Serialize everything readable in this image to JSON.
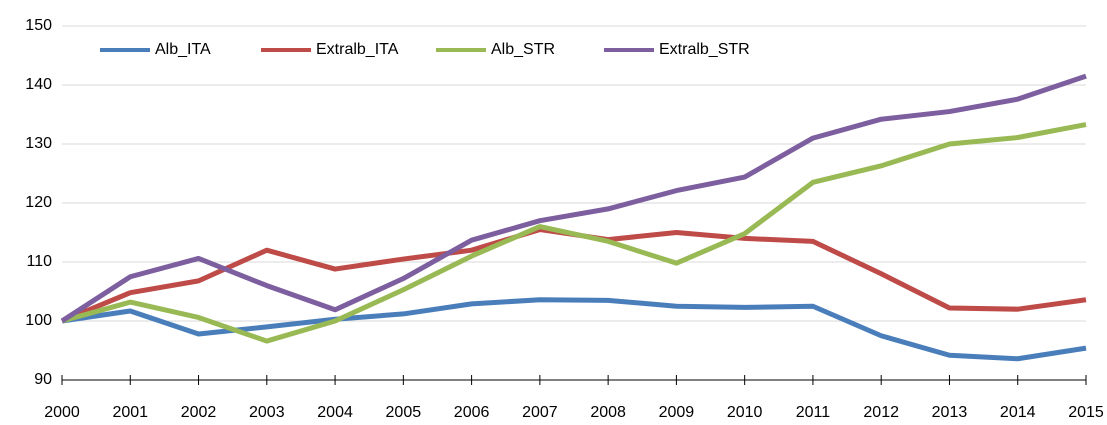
{
  "chart_data": {
    "type": "line",
    "x": [
      2000,
      2001,
      2002,
      2003,
      2004,
      2005,
      2006,
      2007,
      2008,
      2009,
      2010,
      2011,
      2012,
      2013,
      2014,
      2015
    ],
    "xlim": [
      2000,
      2015
    ],
    "xticks": [
      2000,
      2001,
      2002,
      2003,
      2004,
      2005,
      2006,
      2007,
      2008,
      2009,
      2010,
      2011,
      2012,
      2013,
      2014,
      2015
    ],
    "ylim": [
      90,
      150
    ],
    "yticks": [
      90,
      100,
      110,
      120,
      130,
      140,
      150
    ],
    "grid": true,
    "legend": "top-left",
    "series": [
      {
        "name": "Alb_ITA",
        "color": "#4a7ebb",
        "values": [
          100,
          101.7,
          97.8,
          99,
          100.3,
          101.2,
          102.9,
          103.6,
          103.5,
          102.5,
          102.3,
          102.5,
          97.5,
          94.2,
          93.6,
          95.4
        ]
      },
      {
        "name": "Extralb_ITA",
        "color": "#be4b48",
        "values": [
          100,
          104.8,
          106.8,
          112,
          108.8,
          110.5,
          112,
          115.5,
          113.8,
          115,
          114,
          113.5,
          108,
          102.2,
          102,
          103.6
        ]
      },
      {
        "name": "Alb_STR",
        "color": "#98b954",
        "values": [
          100,
          103.2,
          100.6,
          96.6,
          100,
          105.3,
          111,
          116,
          113.5,
          109.8,
          114.8,
          123.5,
          126.3,
          130,
          131.1,
          133.3
        ]
      },
      {
        "name": "Extralb_STR",
        "color": "#7d5fa0",
        "values": [
          100,
          107.5,
          110.6,
          106,
          101.9,
          107.2,
          113.7,
          117,
          119,
          122.1,
          124.4,
          131,
          134.2,
          135.5,
          137.6,
          141.5
        ]
      }
    ]
  }
}
